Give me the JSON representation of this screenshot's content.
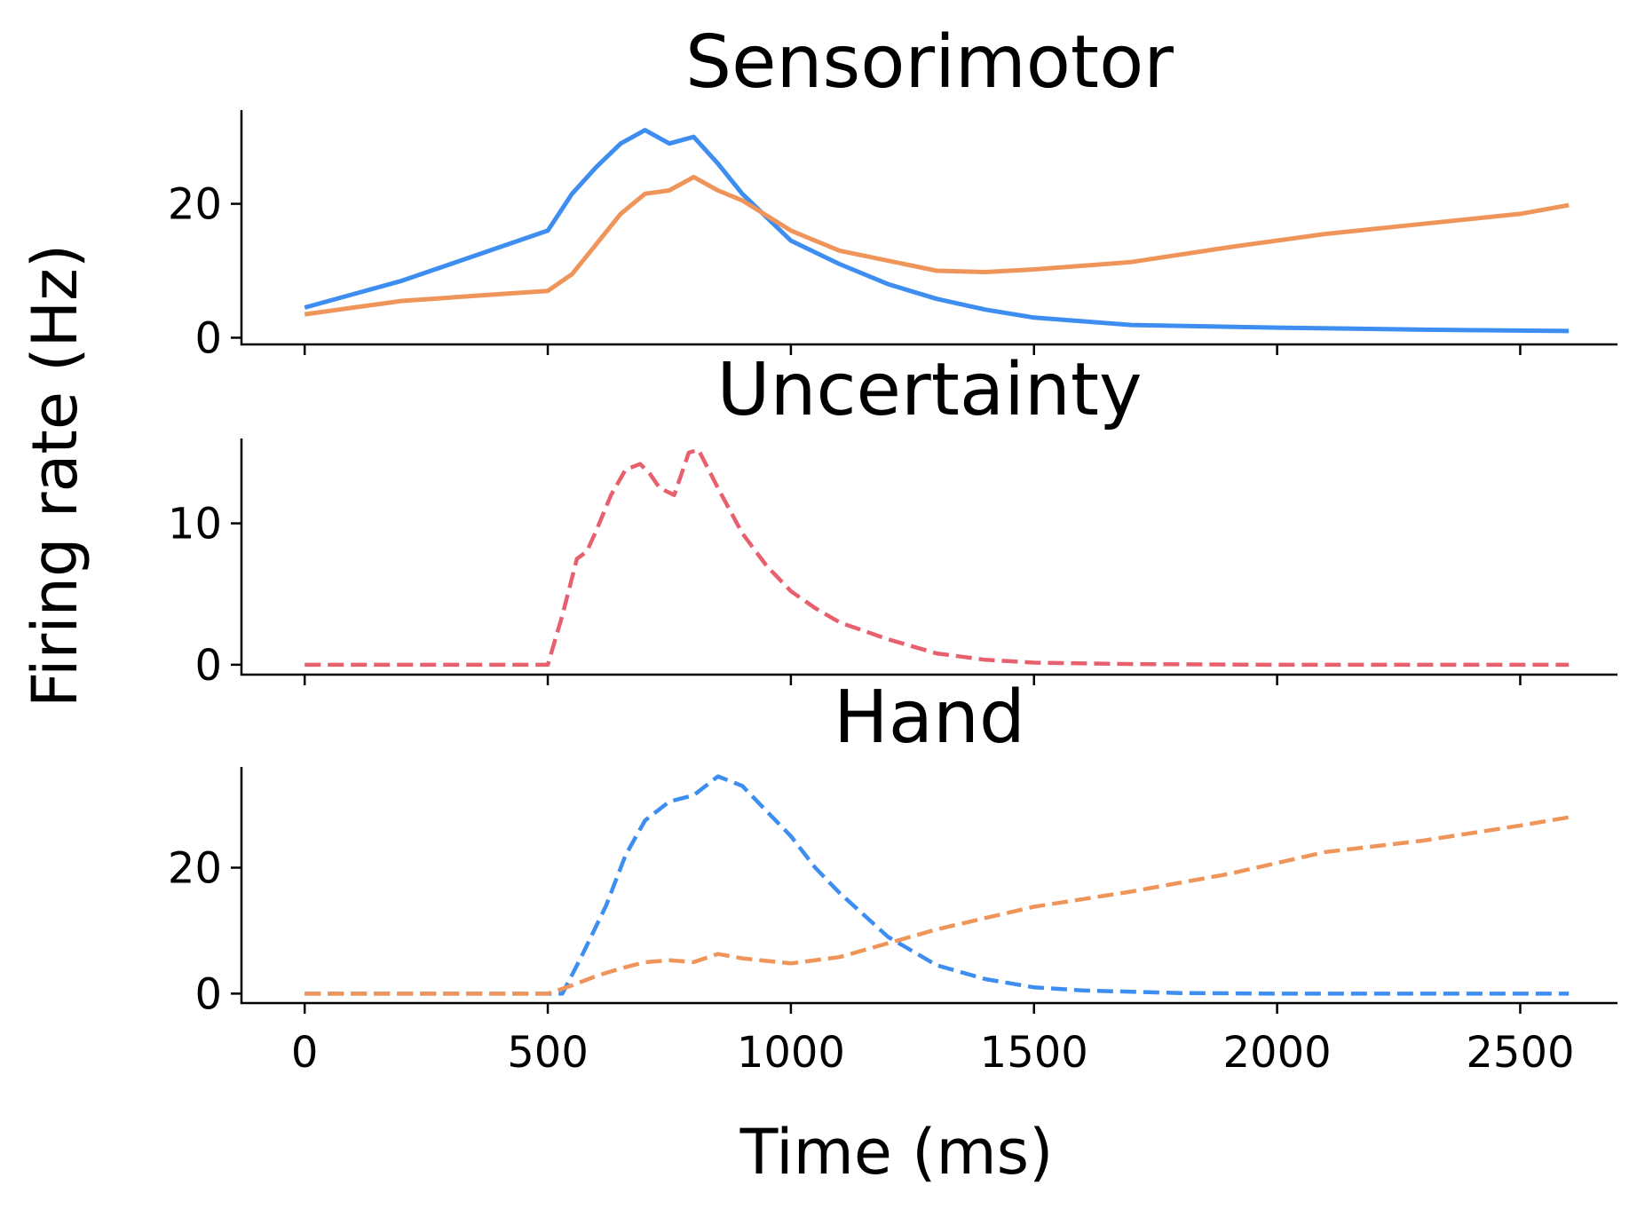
{
  "chart_data": {
    "type": "line",
    "xlabel": "Time (ms)",
    "ylabel": "Firing rate (Hz)",
    "xlim": [
      -130,
      2700
    ],
    "xticks": [
      0,
      500,
      1000,
      1500,
      2000,
      2500
    ],
    "sharex": true,
    "panels": [
      {
        "title": "Sensorimotor",
        "ylim": [
          -1,
          34
        ],
        "yticks": [
          0,
          20
        ],
        "series": [
          {
            "color": "#3d8ef0",
            "style": "solid",
            "x": [
              0,
              100,
              200,
              300,
              400,
              500,
              550,
              600,
              650,
              700,
              750,
              800,
              850,
              900,
              950,
              1000,
              1100,
              1200,
              1300,
              1400,
              1500,
              1700,
              2000,
              2300,
              2600
            ],
            "y": [
              4.5,
              6.5,
              8.5,
              11,
              13.5,
              16,
              21.5,
              25.5,
              29,
              31,
              29,
              30,
              26,
              21.5,
              18,
              14.5,
              11,
              8,
              5.8,
              4.2,
              3,
              1.9,
              1.5,
              1.2,
              1
            ]
          },
          {
            "color": "#f0955a",
            "style": "solid",
            "x": [
              0,
              100,
              200,
              300,
              400,
              500,
              550,
              600,
              650,
              700,
              750,
              800,
              850,
              900,
              1000,
              1100,
              1200,
              1300,
              1400,
              1500,
              1700,
              1900,
              2100,
              2300,
              2500,
              2600
            ],
            "y": [
              3.5,
              4.5,
              5.5,
              6,
              6.5,
              7,
              9.5,
              14,
              18.5,
              21.5,
              22,
              24,
              22,
              20.5,
              16,
              13,
              11.5,
              10,
              9.8,
              10.2,
              11.3,
              13.5,
              15.5,
              17,
              18.5,
              19.8
            ]
          }
        ]
      },
      {
        "title": "Uncertainty",
        "ylim": [
          -0.7,
          16
        ],
        "yticks": [
          0,
          10
        ],
        "series": [
          {
            "color": "#e8606e",
            "style": "dashed",
            "x": [
              0,
              500,
              530,
              560,
              580,
              600,
              630,
              660,
              690,
              710,
              730,
              760,
              790,
              810,
              850,
              900,
              950,
              1000,
              1050,
              1100,
              1200,
              1300,
              1400,
              1500,
              1700,
              2000,
              2600
            ],
            "y": [
              0,
              0,
              3.5,
              7.5,
              8,
              9.5,
              12,
              13.8,
              14.2,
              13.5,
              12.5,
              12,
              15,
              15.2,
              12.5,
              9.3,
              7,
              5.2,
              4,
              3,
              1.8,
              0.8,
              0.35,
              0.15,
              0.05,
              0,
              0
            ]
          }
        ]
      },
      {
        "title": "Hand",
        "ylim": [
          -1.5,
          36
        ],
        "yticks": [
          0,
          20
        ],
        "series": [
          {
            "color": "#3d8ef0",
            "style": "dashed",
            "x": [
              0,
              530,
              570,
              620,
              660,
              700,
              750,
              800,
              850,
              900,
              950,
              1000,
              1050,
              1100,
              1150,
              1200,
              1300,
              1400,
              1500,
              1600,
              1800,
              2000,
              2600
            ],
            "y": [
              0,
              0,
              6,
              14,
              22,
              27.5,
              30.5,
              31.5,
              34.5,
              33,
              29,
              25,
              20,
              16,
              12.5,
              9,
              4.5,
              2.3,
              1,
              0.5,
              0.1,
              0,
              0
            ]
          },
          {
            "color": "#f0955a",
            "style": "dashed",
            "x": [
              0,
              500,
              550,
              600,
              650,
              700,
              750,
              800,
              850,
              900,
              1000,
              1100,
              1200,
              1300,
              1400,
              1500,
              1700,
              1900,
              2100,
              2300,
              2500,
              2600
            ],
            "y": [
              0,
              0,
              1.3,
              2.8,
              4,
              5,
              5.3,
              5,
              6.3,
              5.6,
              4.8,
              5.8,
              8,
              10.2,
              12,
              13.8,
              16.2,
              19,
              22.5,
              24.3,
              26.7,
              28
            ]
          }
        ]
      }
    ]
  }
}
